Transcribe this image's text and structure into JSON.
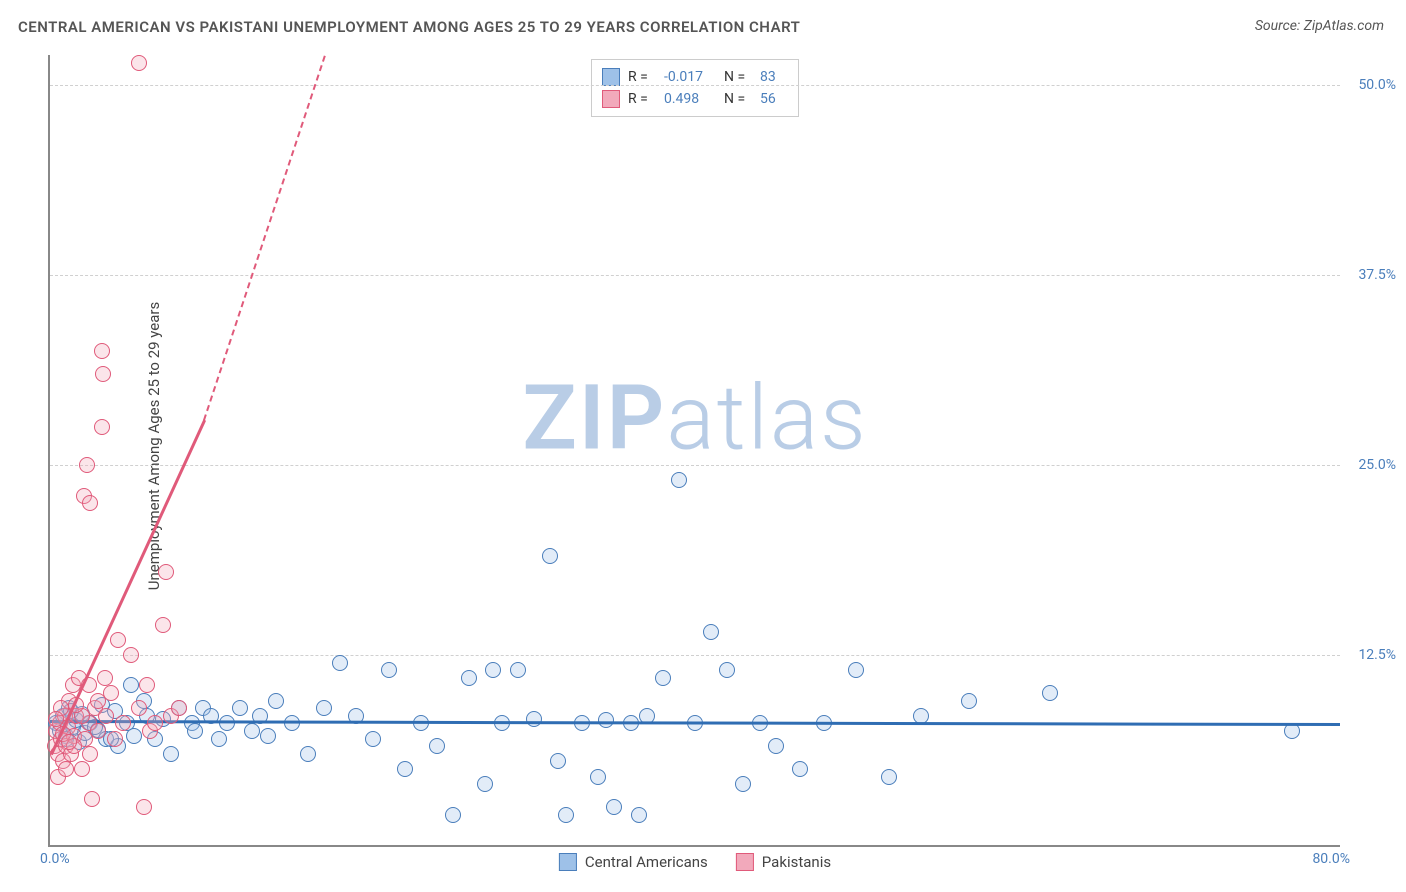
{
  "title": "CENTRAL AMERICAN VS PAKISTANI UNEMPLOYMENT AMONG AGES 25 TO 29 YEARS CORRELATION CHART",
  "title_fontsize": 15,
  "source": "Source: ZipAtlas.com",
  "source_fontsize": 14,
  "ylabel": "Unemployment Among Ages 25 to 29 years",
  "ylabel_fontsize": 15,
  "watermark": {
    "zip": "ZIP",
    "atlas": "atlas",
    "color": "#b9cde6",
    "fontsize": 90
  },
  "chart": {
    "type": "scatter",
    "background_color": "#ffffff",
    "grid_color": "#d0d0d0",
    "xlim": [
      0,
      80
    ],
    "ylim": [
      0,
      52
    ],
    "xticks": [
      {
        "value": 0,
        "label": "0.0%"
      },
      {
        "value": 80,
        "label": "80.0%"
      }
    ],
    "yticks": [
      {
        "value": 12.5,
        "label": "12.5%"
      },
      {
        "value": 25.0,
        "label": "25.0%"
      },
      {
        "value": 37.5,
        "label": "37.5%"
      },
      {
        "value": 50.0,
        "label": "50.0%"
      }
    ],
    "ytick_color": "#4a7ebb",
    "xtick_color": "#4a7ebb",
    "tick_fontsize": 14,
    "marker_radius": 8,
    "marker_border_width": 1.5,
    "marker_fill_opacity": 0.3,
    "series": [
      {
        "name": "Central Americans",
        "color_border": "#4a7ebb",
        "color_fill": "#9ec1e8",
        "R": "-0.017",
        "N": "83",
        "trend": {
          "x1": 0,
          "y1": 8.2,
          "x2": 80,
          "y2": 8.0,
          "color": "#2f6db3",
          "width": 3,
          "dash_after_x": 80
        },
        "points": [
          [
            0.4,
            8.0
          ],
          [
            0.6,
            7.5
          ],
          [
            0.8,
            8.5
          ],
          [
            1.0,
            7.2
          ],
          [
            1.2,
            9.0
          ],
          [
            1.4,
            7.8
          ],
          [
            1.6,
            8.2
          ],
          [
            1.8,
            6.8
          ],
          [
            2.0,
            8.6
          ],
          [
            2.2,
            7.4
          ],
          [
            2.5,
            8.0
          ],
          [
            3.0,
            7.6
          ],
          [
            3.2,
            9.2
          ],
          [
            3.5,
            7.0
          ],
          [
            4.0,
            8.8
          ],
          [
            4.2,
            6.5
          ],
          [
            4.8,
            8.0
          ],
          [
            5.0,
            10.5
          ],
          [
            5.2,
            7.2
          ],
          [
            5.8,
            9.5
          ],
          [
            6.5,
            7.0
          ],
          [
            7.0,
            8.3
          ],
          [
            7.5,
            6.0
          ],
          [
            8.0,
            9.0
          ],
          [
            8.8,
            8.0
          ],
          [
            9.5,
            9.0
          ],
          [
            10.0,
            8.5
          ],
          [
            10.5,
            7.0
          ],
          [
            11.0,
            8.0
          ],
          [
            11.8,
            9.0
          ],
          [
            12.5,
            7.5
          ],
          [
            13.0,
            8.5
          ],
          [
            14.0,
            9.5
          ],
          [
            15.0,
            8.0
          ],
          [
            16.0,
            6.0
          ],
          [
            17.0,
            9.0
          ],
          [
            18.0,
            12.0
          ],
          [
            19.0,
            8.5
          ],
          [
            20.0,
            7.0
          ],
          [
            21.0,
            11.5
          ],
          [
            22.0,
            5.0
          ],
          [
            23.0,
            8.0
          ],
          [
            24.0,
            6.5
          ],
          [
            25.0,
            2.0
          ],
          [
            26.0,
            11.0
          ],
          [
            27.0,
            4.0
          ],
          [
            27.5,
            11.5
          ],
          [
            28.0,
            8.0
          ],
          [
            29.0,
            11.5
          ],
          [
            30.0,
            8.3
          ],
          [
            31.0,
            19.0
          ],
          [
            31.5,
            5.5
          ],
          [
            32.0,
            2.0
          ],
          [
            33.0,
            8.0
          ],
          [
            34.0,
            4.5
          ],
          [
            35.0,
            2.5
          ],
          [
            36.0,
            8.0
          ],
          [
            36.5,
            2.0
          ],
          [
            37.0,
            8.5
          ],
          [
            38.0,
            11.0
          ],
          [
            39.0,
            24.0
          ],
          [
            40.0,
            8.0
          ],
          [
            41.0,
            14.0
          ],
          [
            42.0,
            11.5
          ],
          [
            43.0,
            4.0
          ],
          [
            44.0,
            8.0
          ],
          [
            45.0,
            6.5
          ],
          [
            46.5,
            5.0
          ],
          [
            48.0,
            8.0
          ],
          [
            50.0,
            11.5
          ],
          [
            52.0,
            4.5
          ],
          [
            54.0,
            8.5
          ],
          [
            57.0,
            9.5
          ],
          [
            62.0,
            10.0
          ],
          [
            77.0,
            7.5
          ],
          [
            1.0,
            7.0
          ],
          [
            1.3,
            8.8
          ],
          [
            2.8,
            7.8
          ],
          [
            3.8,
            7.0
          ],
          [
            6.0,
            8.5
          ],
          [
            9.0,
            7.5
          ],
          [
            13.5,
            7.2
          ],
          [
            34.5,
            8.2
          ]
        ]
      },
      {
        "name": "Pakistanis",
        "color_border": "#e05a7a",
        "color_fill": "#f2a9bb",
        "R": "0.498",
        "N": "56",
        "trend": {
          "x1": 0,
          "y1": 6.0,
          "x2": 9.5,
          "y2": 28.0,
          "color": "#e05a7a",
          "width": 3,
          "dash_after_x": 9.5,
          "dash_x2": 17,
          "dash_y2": 52
        },
        "points": [
          [
            0.3,
            6.5
          ],
          [
            0.4,
            7.5
          ],
          [
            0.5,
            6.0
          ],
          [
            0.6,
            8.0
          ],
          [
            0.7,
            7.0
          ],
          [
            0.8,
            5.5
          ],
          [
            0.9,
            8.5
          ],
          [
            1.0,
            6.5
          ],
          [
            1.1,
            7.8
          ],
          [
            1.2,
            9.5
          ],
          [
            1.3,
            6.0
          ],
          [
            1.4,
            10.5
          ],
          [
            1.5,
            7.2
          ],
          [
            1.6,
            8.5
          ],
          [
            1.8,
            11.0
          ],
          [
            2.0,
            5.0
          ],
          [
            2.1,
            23.0
          ],
          [
            2.2,
            7.0
          ],
          [
            2.3,
            25.0
          ],
          [
            2.4,
            8.0
          ],
          [
            2.5,
            22.5
          ],
          [
            2.6,
            3.0
          ],
          [
            2.8,
            9.0
          ],
          [
            3.0,
            7.5
          ],
          [
            3.2,
            27.5
          ],
          [
            3.2,
            32.5
          ],
          [
            3.3,
            31.0
          ],
          [
            3.5,
            8.5
          ],
          [
            3.8,
            10.0
          ],
          [
            4.0,
            7.0
          ],
          [
            4.2,
            13.5
          ],
          [
            4.5,
            8.0
          ],
          [
            5.0,
            12.5
          ],
          [
            5.5,
            9.0
          ],
          [
            5.8,
            2.5
          ],
          [
            6.0,
            10.5
          ],
          [
            6.2,
            7.5
          ],
          [
            6.5,
            8.0
          ],
          [
            7.0,
            14.5
          ],
          [
            7.2,
            18.0
          ],
          [
            7.5,
            8.5
          ],
          [
            8.0,
            9.0
          ],
          [
            5.5,
            51.5
          ],
          [
            0.5,
            4.5
          ],
          [
            0.7,
            9.0
          ],
          [
            1.0,
            5.0
          ],
          [
            1.5,
            6.5
          ],
          [
            2.0,
            8.5
          ],
          [
            2.5,
            6.0
          ],
          [
            3.0,
            9.5
          ],
          [
            0.4,
            8.3
          ],
          [
            0.8,
            7.3
          ],
          [
            1.2,
            6.8
          ],
          [
            1.6,
            9.2
          ],
          [
            2.4,
            10.5
          ],
          [
            3.4,
            11.0
          ]
        ]
      }
    ],
    "legend_top": {
      "border_color": "#cccccc",
      "background": "#ffffff",
      "r_label": "R =",
      "n_label": "N =",
      "value_color": "#4a7ebb"
    },
    "legend_bottom": {
      "items": [
        "Central Americans",
        "Pakistanis"
      ]
    }
  }
}
